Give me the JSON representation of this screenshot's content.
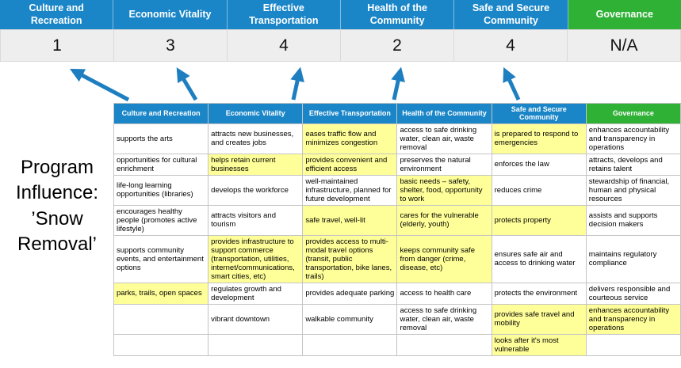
{
  "colors": {
    "blue": "#1a86c8",
    "green": "#2eb135",
    "highlight": "#ffff99",
    "score_row_bg": "#eeeeee",
    "arrow": "#1e7fc0"
  },
  "title": {
    "lines": [
      "Program",
      "Influence:",
      "’Snow",
      "Removal’"
    ]
  },
  "scoreboard": {
    "columns": [
      {
        "label": "Culture and Recreation",
        "score": "1"
      },
      {
        "label": "Economic Vitality",
        "score": "3"
      },
      {
        "label": "Effective Transportation",
        "score": "4"
      },
      {
        "label": "Health of the Community",
        "score": "2"
      },
      {
        "label": "Safe and Secure Community",
        "score": "4"
      },
      {
        "label": "Governance",
        "score": "N/A"
      }
    ]
  },
  "matrix": {
    "headers": [
      {
        "label": "Culture and Recreation",
        "color": "blue"
      },
      {
        "label": "Economic Vitality",
        "color": "blue"
      },
      {
        "label": "Effective Transportation",
        "color": "blue"
      },
      {
        "label": "Health of the Community",
        "color": "blue"
      },
      {
        "label": "Safe and Secure Community",
        "color": "blue"
      },
      {
        "label": "Governance",
        "color": "green"
      }
    ],
    "rows": [
      [
        {
          "text": "supports the arts",
          "hl": false
        },
        {
          "text": "attracts new businesses, and creates jobs",
          "hl": false
        },
        {
          "text": "eases traffic flow and minimizes congestion",
          "hl": true
        },
        {
          "text": "access to safe drinking water, clean air, waste removal",
          "hl": false
        },
        {
          "text": "is prepared to respond to emergencies",
          "hl": true
        },
        {
          "text": "enhances accountability and transparency in operations",
          "hl": false
        }
      ],
      [
        {
          "text": "opportunities for cultural enrichment",
          "hl": false
        },
        {
          "text": "helps retain current businesses",
          "hl": true
        },
        {
          "text": "provides convenient and efficient access",
          "hl": true
        },
        {
          "text": "preserves the natural environment",
          "hl": false
        },
        {
          "text": "enforces the law",
          "hl": false
        },
        {
          "text": "attracts, develops and retains talent",
          "hl": false
        }
      ],
      [
        {
          "text": "life-long learning opportunities (libraries)",
          "hl": false
        },
        {
          "text": "develops the workforce",
          "hl": false
        },
        {
          "text": "well-maintained infrastructure, planned for future development",
          "hl": false
        },
        {
          "text": "basic needs – safety, shelter, food, opportunity to work",
          "hl": true
        },
        {
          "text": "reduces crime",
          "hl": false
        },
        {
          "text": "stewardship of financial, human and physical resources",
          "hl": false
        }
      ],
      [
        {
          "text": "encourages healthy people (promotes active lifestyle)",
          "hl": false
        },
        {
          "text": "attracts visitors and tourism",
          "hl": false
        },
        {
          "text": "safe travel, well-lit",
          "hl": true
        },
        {
          "text": "cares for the vulnerable (elderly, youth)",
          "hl": true
        },
        {
          "text": "protects property",
          "hl": true
        },
        {
          "text": "assists and supports decision makers",
          "hl": false
        }
      ],
      [
        {
          "text": "supports community events, and entertainment options",
          "hl": false
        },
        {
          "text": "provides infrastructure to support commerce (transportation, utilities, internet/communications, smart cities, etc)",
          "hl": true
        },
        {
          "text": "provides access to multi-modal travel options (transit, public transportation, bike lanes, trails)",
          "hl": true
        },
        {
          "text": "keeps community safe from danger (crime, disease, etc)",
          "hl": true
        },
        {
          "text": "ensures safe air and access to drinking water",
          "hl": false
        },
        {
          "text": "maintains regulatory compliance",
          "hl": false
        }
      ],
      [
        {
          "text": "parks, trails, open spaces",
          "hl": true
        },
        {
          "text": "regulates growth and development",
          "hl": false
        },
        {
          "text": "provides adequate parking",
          "hl": false
        },
        {
          "text": "access to health care",
          "hl": false
        },
        {
          "text": "protects the environment",
          "hl": false
        },
        {
          "text": "delivers responsible and courteous service",
          "hl": false
        }
      ],
      [
        {
          "text": "",
          "hl": false
        },
        {
          "text": "vibrant downtown",
          "hl": false
        },
        {
          "text": "walkable community",
          "hl": false
        },
        {
          "text": "access to safe drinking water, clean air, waste removal",
          "hl": false
        },
        {
          "text": "provides safe travel and mobility",
          "hl": true
        },
        {
          "text": "enhances accountability and transparency in operations",
          "hl": true
        }
      ],
      [
        {
          "text": "",
          "hl": false
        },
        {
          "text": "",
          "hl": false
        },
        {
          "text": "",
          "hl": false
        },
        {
          "text": "",
          "hl": false
        },
        {
          "text": "looks after it's most vulnerable",
          "hl": true
        },
        {
          "text": "",
          "hl": false
        }
      ]
    ]
  }
}
